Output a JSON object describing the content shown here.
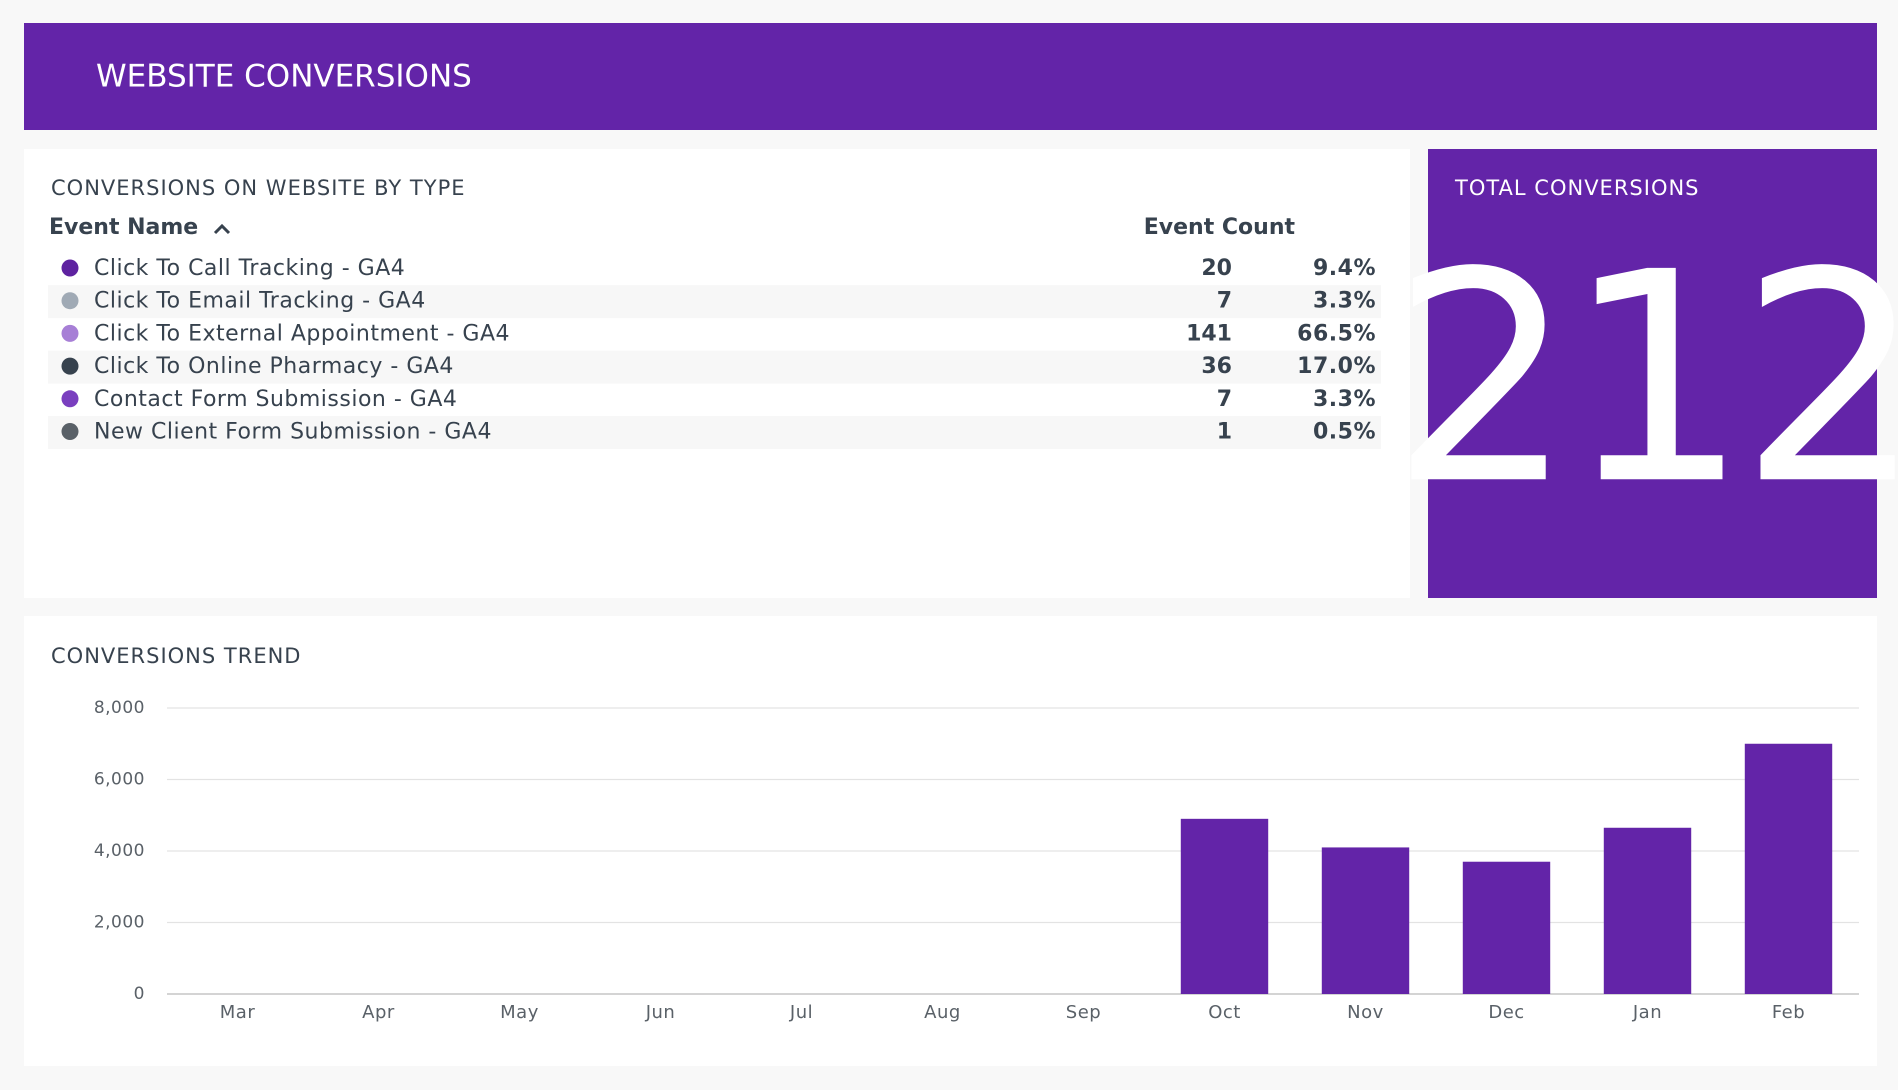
{
  "header": {
    "title": "WEBSITE CONVERSIONS"
  },
  "table": {
    "title": "CONVERSIONS ON WEBSITE BY TYPE",
    "columns": [
      "Event Name",
      "Event Count"
    ],
    "rows": [
      {
        "name": "Click To Call Tracking - GA4",
        "color": "#5e22a0",
        "count": 20,
        "percent": "9.4%"
      },
      {
        "name": "Click To Email Tracking - GA4",
        "color": "#a0aab5",
        "count": 7,
        "percent": "3.3%"
      },
      {
        "name": "Click To External Appointment - GA4",
        "color": "#a77fd6",
        "count": 141,
        "percent": "66.5%"
      },
      {
        "name": "Click To Online Pharmacy - GA4",
        "color": "#37424e",
        "count": 36,
        "percent": "17.0%"
      },
      {
        "name": "Contact Form Submission - GA4",
        "color": "#7a3fbf",
        "count": 7,
        "percent": "3.3%"
      },
      {
        "name": "New Client Form Submission - GA4",
        "color": "#5a6168",
        "count": 1,
        "percent": "0.5%"
      }
    ]
  },
  "total": {
    "title": "TOTAL CONVERSIONS",
    "value": 212
  },
  "chart_data": {
    "type": "bar",
    "title": "CONVERSIONS TREND",
    "categories": [
      "Mar",
      "Apr",
      "May",
      "Jun",
      "Jul",
      "Aug",
      "Sep",
      "Oct",
      "Nov",
      "Dec",
      "Jan",
      "Feb"
    ],
    "values": [
      0,
      0,
      0,
      0,
      0,
      0,
      0,
      4900,
      4100,
      3700,
      4650,
      7000
    ],
    "color": "#6324a8",
    "ylim": [
      0,
      8000
    ],
    "yticks": [
      0,
      {
        "value": 2000,
        "label": "2,000"
      },
      {
        "value": 4000,
        "label": "4,000"
      },
      {
        "value": 6000,
        "label": "6,000"
      },
      {
        "value": 8000,
        "label": "8,000"
      }
    ],
    "grid": true
  }
}
